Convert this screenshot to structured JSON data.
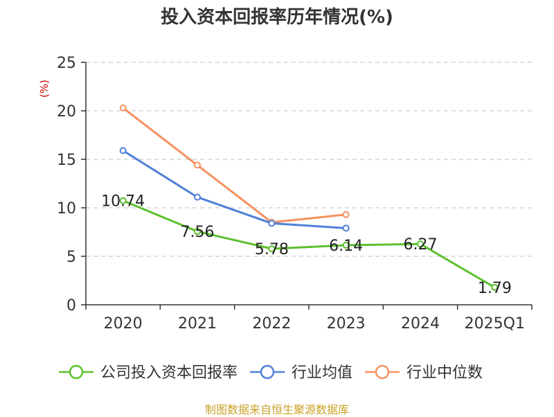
{
  "chart_data": {
    "type": "line",
    "title": "投入资本回报率历年情况(%)",
    "ylabel": "(%)",
    "categories": [
      "2020",
      "2021",
      "2022",
      "2023",
      "2024",
      "2025Q1"
    ],
    "ylim": [
      0,
      25
    ],
    "yticks": [
      0,
      5,
      10,
      15,
      20,
      25
    ],
    "grid": true,
    "legend_position": "bottom",
    "series": [
      {
        "name": "公司投入资本回报率",
        "color": "#5cc02e",
        "values": [
          10.74,
          7.56,
          5.78,
          6.14,
          6.27,
          1.79
        ],
        "labels": [
          "10.74",
          "7.56",
          "5.78",
          "6.14",
          "6.27",
          "1.79"
        ]
      },
      {
        "name": "行业均值",
        "color": "#4f7fd8",
        "values": [
          15.9,
          11.1,
          8.4,
          7.9,
          null,
          null
        ]
      },
      {
        "name": "行业中位数",
        "color": "#f59160",
        "values": [
          20.3,
          14.4,
          8.5,
          9.3,
          null,
          null
        ]
      }
    ]
  },
  "source": "制图数据来自恒生聚源数据库",
  "colors": {
    "axis": "#333333",
    "grid": "#cccccc",
    "unit": "#cc0000",
    "source": "#c9a227"
  }
}
